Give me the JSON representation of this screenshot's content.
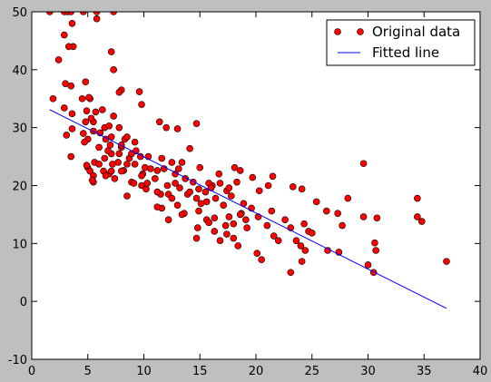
{
  "chart_data": {
    "type": "scatter",
    "xlim": [
      0,
      40
    ],
    "ylim": [
      -10,
      50
    ],
    "xticks": [
      0,
      5,
      10,
      15,
      20,
      25,
      30,
      35,
      40
    ],
    "yticks": [
      -10,
      0,
      10,
      20,
      30,
      40,
      50
    ],
    "legend": "upper right",
    "series": [
      {
        "name": "Original data",
        "color": "#ff0000",
        "mode": "markers",
        "x": [
          1.6,
          2.9,
          3.2,
          3.5,
          4.6,
          5.8,
          7.3,
          5.8,
          3.6,
          2.9,
          3.7,
          3.3,
          7.1,
          2.4,
          7.3,
          3.0,
          3.5,
          4.8,
          8.0,
          9.6,
          7.8,
          4.5,
          5.2,
          1.9,
          9.8,
          2.9,
          5.7,
          3.6,
          7.3,
          11.4,
          4.8,
          5.5,
          14.7,
          6.5,
          7.8,
          12,
          3.6,
          13,
          5.5,
          4.6,
          3.1,
          5.0,
          8.3,
          6.6,
          9.2,
          4.7,
          6.0,
          8.0,
          14.1,
          3.5,
          9.7,
          10.4,
          6.5,
          8.7,
          11.6,
          5.6,
          7.7,
          12.5,
          13.4,
          29.6,
          5.0,
          10.1,
          15.0,
          18.1,
          8.2,
          11.2,
          18.6,
          6.9,
          9.9,
          12.8,
          16.7,
          21.5,
          7.4,
          11.0,
          13.7,
          5.5,
          8.9,
          14.4,
          18.3,
          9.8,
          12.1,
          16.1,
          21.1,
          23.3,
          10.2,
          14.9,
          24.1,
          17.4,
          20.3,
          11.5,
          12.2,
          13.9,
          8.5,
          17.8,
          34.4,
          28.2,
          25.4,
          15.6,
          13.0,
          17.1,
          11.6,
          19.6,
          14.9,
          21.4,
          26.3,
          13.6,
          18.7,
          27.3,
          17.6,
          20.2,
          29.6,
          34.4,
          30.8,
          16.3,
          15.6,
          12.2,
          19.1,
          22.6,
          34.8,
          18.0,
          24.3,
          17.3,
          21.0,
          27.7,
          14.8,
          19.2,
          23.1,
          16.3,
          24.7,
          25.0,
          21.6,
          14.7,
          18.0,
          16.8,
          22.0,
          23.6,
          30.6,
          18.4,
          24.0,
          24.4,
          26.4,
          30.7,
          27.4,
          20.1,
          20.5,
          24.1,
          37.0,
          30.0,
          23.1,
          30.5,
          5.2,
          6.4,
          7.1,
          8.0,
          5.5,
          6.6,
          9.8,
          7.2,
          6.0,
          8.5,
          9.2,
          10.6,
          11.8,
          13.1,
          9.1,
          10.3,
          12.8,
          15.8,
          16.8,
          13.2,
          16.0,
          17.6,
          11.2,
          14.1,
          15.5,
          12.5,
          14.7,
          16.4,
          15.1,
          18.9,
          7.1,
          7.8,
          8.9,
          6.8,
          9.3,
          7.0,
          8.0,
          7.1,
          8.5,
          6.1,
          6.9,
          6.3,
          5.1,
          4.9,
          5.3,
          4.9,
          5.4,
          19.7,
          11.2,
          18.6,
          13.4,
          17.4,
          15.8
        ],
        "values": [
          50,
          50,
          50,
          50,
          50,
          50,
          50,
          48.8,
          48,
          46,
          44,
          44,
          43.1,
          41.7,
          40,
          37.6,
          37.2,
          37.9,
          36.5,
          36.2,
          36.1,
          35,
          35,
          35,
          34,
          33.4,
          32.7,
          32.4,
          32,
          31,
          31,
          31,
          30.7,
          30,
          30,
          30,
          29.8,
          29.8,
          29.4,
          29,
          28.7,
          28,
          28,
          28,
          27.5,
          27.5,
          26.6,
          26.6,
          26.4,
          25,
          25,
          25,
          24.7,
          24.7,
          24.7,
          24,
          24,
          24,
          24,
          23.8,
          23.1,
          23.1,
          23.1,
          23.1,
          22.6,
          22.6,
          22.6,
          22,
          22,
          22,
          22,
          21.6,
          21.2,
          21.2,
          21.2,
          20.6,
          20.6,
          20.6,
          20.6,
          20,
          20,
          20,
          20,
          19.8,
          19.4,
          19.4,
          19.4,
          19.1,
          19.1,
          18.5,
          18.5,
          18.5,
          18.2,
          18.2,
          17.8,
          17.8,
          17.2,
          17.2,
          16.6,
          16.6,
          16.1,
          16.1,
          15.6,
          15.6,
          15.6,
          15.2,
          15.2,
          15.2,
          14.6,
          14.6,
          14.6,
          14.6,
          14.4,
          14.4,
          14.1,
          14.1,
          14.1,
          14.1,
          13.8,
          13.4,
          13.4,
          13.1,
          13.1,
          13.1,
          12.7,
          12.7,
          12.7,
          12.1,
          12.1,
          11.8,
          11.3,
          10.9,
          10.9,
          10.5,
          10.5,
          10.5,
          10.1,
          9.6,
          9.6,
          8.8,
          8.8,
          8.8,
          8.5,
          8.3,
          7.2,
          6.9,
          6.9,
          6.3,
          5.0,
          5.0,
          22.5,
          22.5,
          22.5,
          22.5,
          21.7,
          21.7,
          21.7,
          23.7,
          23.7,
          23.7,
          23.7,
          22.9,
          22.9,
          22.9,
          20.4,
          20.4,
          20.4,
          20.4,
          20.4,
          19.6,
          19.6,
          19.6,
          18.9,
          18.9,
          18.9,
          17.8,
          17.8,
          17.8,
          16.9,
          16.9,
          25.5,
          25.5,
          25.5,
          26,
          26,
          27,
          27,
          28.4,
          28.4,
          29.1,
          30.3,
          33.1,
          35.2,
          32.9,
          31.6,
          23.5,
          20.9,
          21.4,
          16.3,
          15,
          15,
          11.6,
          13.6
        ]
      },
      {
        "name": "Fitted line",
        "color": "#0000ff",
        "mode": "line",
        "x": [
          1.6,
          37.0
        ],
        "values": [
          33.1,
          -1.2
        ]
      }
    ]
  }
}
